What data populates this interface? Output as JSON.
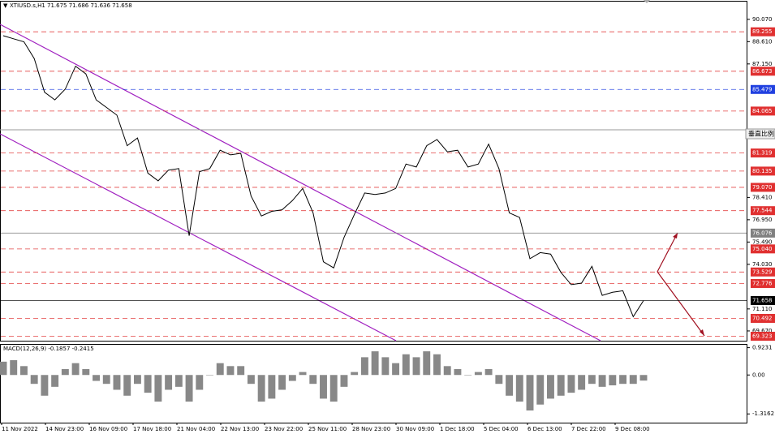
{
  "chart_data": {
    "type": "line",
    "title": "XTIUSD.s,H1  71.675 71.686 71.636 71.658",
    "x_labels": [
      "11 Nov 2022",
      "14 Nov 23:00",
      "16 Nov 09:00",
      "17 Nov 18:00",
      "21 Nov 04:00",
      "22 Nov 13:00",
      "23 Nov 22:00",
      "25 Nov 11:00",
      "28 Nov 23:00",
      "30 Nov 09:00",
      "1 Dec 18:00",
      "5 Dec 04:00",
      "6 Dec 13:00",
      "7 Dec 22:00",
      "9 Dec 08:00"
    ],
    "series": [
      {
        "name": "XTIUSD.s",
        "color": "#000000",
        "values": [
          89.0,
          88.8,
          88.6,
          87.5,
          85.3,
          84.8,
          85.5,
          87.0,
          86.5,
          84.8,
          84.3,
          83.8,
          81.8,
          82.3,
          80.0,
          79.5,
          80.2,
          80.3,
          75.9,
          80.1,
          80.3,
          81.5,
          81.2,
          81.3,
          78.5,
          77.2,
          77.5,
          77.6,
          78.2,
          79.0,
          77.4,
          74.2,
          73.8,
          75.8,
          77.3,
          78.7,
          78.6,
          78.7,
          79.0,
          80.6,
          80.4,
          81.8,
          82.2,
          81.4,
          81.5,
          80.4,
          80.6,
          81.9,
          80.3,
          77.4,
          77.1,
          74.4,
          74.8,
          74.7,
          73.5,
          72.7,
          72.8,
          73.9,
          72.0,
          72.2,
          72.3,
          70.6,
          71.658
        ]
      }
    ],
    "ylim": [
      69.03,
      91.23
    ],
    "yticks": [
      {
        "value": 90.07,
        "label": "90.070"
      },
      {
        "value": 88.61,
        "label": "88.610"
      },
      {
        "value": 87.15,
        "label": "87.150"
      },
      {
        "value": 78.41,
        "label": "78.410"
      },
      {
        "value": 76.95,
        "label": "76.950"
      },
      {
        "value": 75.49,
        "label": "75.490"
      },
      {
        "value": 74.03,
        "label": "74.030"
      },
      {
        "value": 71.11,
        "label": "71.110"
      },
      {
        "value": 69.67,
        "label": "69.670"
      }
    ],
    "levels": [
      {
        "value": 89.255,
        "label": "89.255",
        "color": "#e03030"
      },
      {
        "value": 86.673,
        "label": "86.673",
        "color": "#e03030"
      },
      {
        "value": 85.479,
        "label": "85.479",
        "color": "#2040e0"
      },
      {
        "value": 84.065,
        "label": "84.065",
        "color": "#e03030"
      },
      {
        "value": 81.319,
        "label": "81.319",
        "color": "#e03030"
      },
      {
        "value": 80.135,
        "label": "80.135",
        "color": "#e03030"
      },
      {
        "value": 79.07,
        "label": "79.070",
        "color": "#e03030"
      },
      {
        "value": 77.544,
        "label": "77.544",
        "color": "#e03030"
      },
      {
        "value": 76.076,
        "label": "76.076",
        "color": "#808080"
      },
      {
        "value": 75.04,
        "label": "75.040",
        "color": "#e03030"
      },
      {
        "value": 73.529,
        "label": "73.529",
        "color": "#e03030"
      },
      {
        "value": 72.776,
        "label": "72.776",
        "color": "#e03030"
      },
      {
        "value": 71.658,
        "label": "71.658",
        "color": "#000000"
      },
      {
        "value": 70.492,
        "label": "70.492",
        "color": "#e03030"
      },
      {
        "value": 69.323,
        "label": "69.323",
        "color": "#e03030"
      }
    ],
    "scale_label": "垂直比例",
    "macd": {
      "title": "MACD(12,26,9) -0.1857 -0.2415",
      "color": "#888888",
      "values": [
        0.45,
        0.5,
        0.3,
        -0.3,
        -0.7,
        -0.4,
        0.2,
        0.4,
        0.2,
        -0.2,
        -0.3,
        -0.5,
        -0.7,
        -0.3,
        -0.6,
        -0.9,
        -0.5,
        -0.4,
        -0.9,
        -0.5,
        0.0,
        0.4,
        0.3,
        0.3,
        -0.3,
        -0.9,
        -0.8,
        -0.5,
        -0.2,
        0.1,
        -0.3,
        -0.8,
        -0.9,
        -0.4,
        0.1,
        0.6,
        0.8,
        0.6,
        0.4,
        0.7,
        0.6,
        0.8,
        0.7,
        0.3,
        0.2,
        0.0,
        0.1,
        0.2,
        -0.3,
        -0.7,
        -0.9,
        -1.2,
        -1.0,
        -0.8,
        -0.7,
        -0.6,
        -0.5,
        -0.3,
        -0.4,
        -0.35,
        -0.3,
        -0.3,
        -0.19
      ],
      "ylim": [
        -1.611,
        1.0215
      ],
      "yticks": [
        {
          "value": 0.9231,
          "label": "0.9231"
        },
        {
          "value": 0,
          "label": "0.00"
        },
        {
          "value": -1.3162,
          "label": "-1.3162"
        }
      ]
    }
  }
}
